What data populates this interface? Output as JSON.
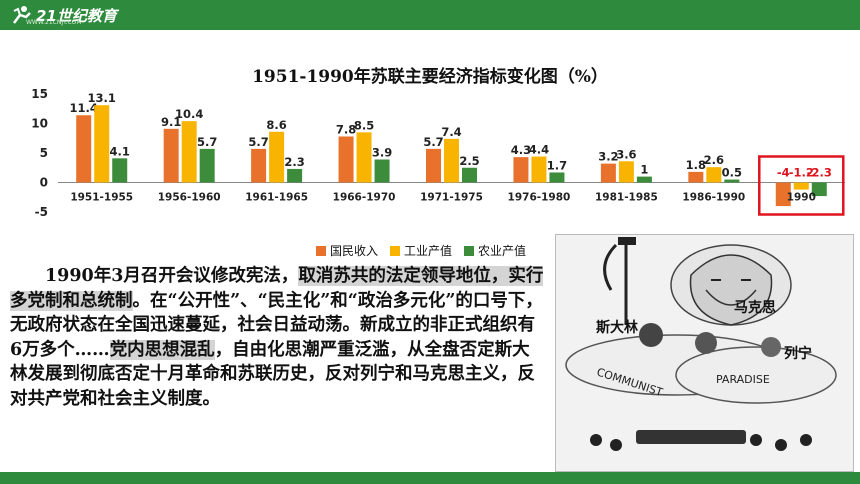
{
  "header": {
    "logo_text": "21世纪教育",
    "logo_sub": "WWW.21CNJY.COM",
    "brand_color": "#2e8b3e"
  },
  "chart_data": {
    "type": "bar",
    "title": "1951-1990年苏联主要经济指标变化图（%）",
    "categories": [
      "1951-1955",
      "1956-1960",
      "1961-1965",
      "1966-1970",
      "1971-1975",
      "1976-1980",
      "1981-1985",
      "1986-1990",
      "1990"
    ],
    "series": [
      {
        "name": "国民收入",
        "color": "#e8722b",
        "values": [
          11.4,
          9.1,
          5.7,
          7.8,
          5.7,
          4.3,
          3.2,
          1.8,
          -4
        ]
      },
      {
        "name": "工业产值",
        "color": "#f8b400",
        "values": [
          13.1,
          10.4,
          8.6,
          8.5,
          7.4,
          4.4,
          3.6,
          2.6,
          -1.2
        ]
      },
      {
        "name": "农业产值",
        "color": "#3c8c3c",
        "values": [
          4.1,
          5.7,
          2.3,
          3.9,
          2.5,
          1.7,
          1,
          0.5,
          -2.3
        ]
      }
    ],
    "value_labels": [
      [
        "11.4",
        "13.1",
        "4.1"
      ],
      [
        "9.1",
        "10.4",
        "5.7"
      ],
      [
        "5.7",
        "8.6",
        "2.3"
      ],
      [
        "7.8",
        "8.5",
        "3.9"
      ],
      [
        "5.7",
        "7.4",
        "2.5"
      ],
      [
        "4.3",
        "4.4",
        "1.7"
      ],
      [
        "3.2",
        "3.6",
        "1"
      ],
      [
        "1.8",
        "2.6",
        "0.5"
      ],
      [
        "-4",
        "-1.2",
        "-2.3"
      ]
    ],
    "ylim": [
      -5,
      15
    ],
    "yticks": [
      "15",
      "10",
      "5",
      "0",
      "-5"
    ],
    "ytick_values": [
      15,
      10,
      5,
      0,
      -5
    ],
    "highlight_category": "1990",
    "highlight_color": "#e0141e",
    "legend_position": "bottom-right"
  },
  "text": {
    "p1_a": "1990年3月召开会议修改宪法，",
    "p1_hl1": "取消苏共的法定领导地位，实行多党制和总统制",
    "p1_b": "。在“公开性”、“民主化”和“政治多元化”的口号下，无政府状态在全国迅速蔓延，社会日益动荡。新成立的非正式组织有6万多个……",
    "p1_hl2": "党内思想混乱",
    "p1_c": "，自由化思潮严重泛滥，从全盘否定斯大林发展到彻底否定十月革命和苏联历史，反对列宁和马克思主义，反对共产党和社会主义制度。"
  },
  "cartoon": {
    "label_marx": "马克思",
    "label_stalin": "斯大林",
    "label_lenin": "列宁",
    "cloud_text_1": "COMMUNIST",
    "cloud_text_2": "PARADISE"
  }
}
